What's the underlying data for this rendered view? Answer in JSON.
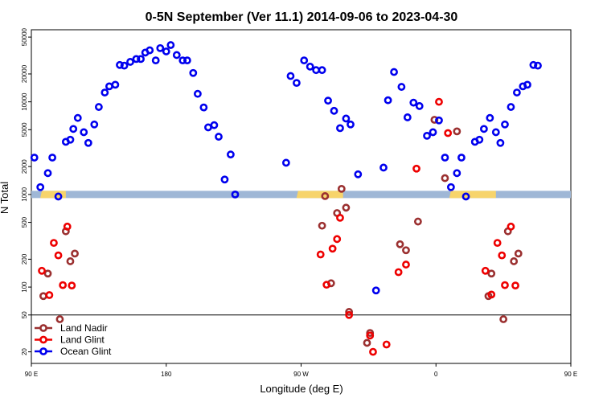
{
  "chart_data": {
    "type": "scatter",
    "title": "0-5N September (Ver 11.1)   2014-09-06 to 2023-04-30",
    "xlabel": "Longitude (deg E)",
    "ylabel": "N Total",
    "y_scale": "log",
    "xlim": [
      90,
      450
    ],
    "ylim": [
      15,
      60000
    ],
    "x_ticks": [
      {
        "value": 90,
        "label": "90 E"
      },
      {
        "value": 180,
        "label": "180"
      },
      {
        "value": 270,
        "label": "90 W"
      },
      {
        "value": 360,
        "label": "0"
      },
      {
        "value": 450,
        "label": "90 E"
      },
      {
        "value": 540,
        "label": "180"
      }
    ],
    "y_ticks": [
      {
        "value": 20,
        "label": "20"
      },
      {
        "value": 50,
        "label": "50"
      },
      {
        "value": 100,
        "label": "100"
      },
      {
        "value": 200,
        "label": "200"
      },
      {
        "value": 500,
        "label": "500"
      },
      {
        "value": 1000,
        "label": "1000"
      },
      {
        "value": 2000,
        "label": "2000"
      },
      {
        "value": 5000,
        "label": "5000"
      },
      {
        "value": 10000,
        "label": "10000"
      },
      {
        "value": 20000,
        "label": "20000"
      },
      {
        "value": 50000,
        "label": "50000"
      }
    ],
    "reference_lines": [
      50
    ],
    "land_band": {
      "y_center": 1000,
      "band_color": "#9fb7d6",
      "land_color": "#f7d46b",
      "land_segments": [
        [
          97,
          113
        ],
        [
          268,
          298
        ],
        [
          370,
          400
        ]
      ]
    },
    "legend": {
      "placement": "bottom-left"
    },
    "series": [
      {
        "name": "Land Nadir",
        "color": "#9b3030",
        "points": [
          [
            98,
            80
          ],
          [
            101,
            140
          ],
          [
            109,
            45
          ],
          [
            113,
            400
          ],
          [
            116,
            190
          ],
          [
            119,
            230
          ],
          [
            284,
            460
          ],
          [
            286,
            960
          ],
          [
            290,
            110
          ],
          [
            294,
            630
          ],
          [
            297,
            1150
          ],
          [
            300,
            720
          ],
          [
            302,
            54
          ],
          [
            314,
            25
          ],
          [
            316,
            32
          ],
          [
            336,
            290
          ],
          [
            340,
            250
          ],
          [
            348,
            510
          ],
          [
            359,
            6400
          ],
          [
            366,
            1500
          ],
          [
            374,
            4800
          ],
          [
            395,
            80
          ],
          [
            397,
            140
          ],
          [
            405,
            45
          ],
          [
            408,
            400
          ],
          [
            412,
            190
          ],
          [
            415,
            230
          ]
        ]
      },
      {
        "name": "Land Glint",
        "color": "#ee0000",
        "points": [
          [
            97,
            150
          ],
          [
            102,
            82
          ],
          [
            105,
            300
          ],
          [
            108,
            220
          ],
          [
            111,
            105
          ],
          [
            114,
            450
          ],
          [
            117,
            104
          ],
          [
            283,
            225
          ],
          [
            287,
            106
          ],
          [
            291,
            260
          ],
          [
            294,
            330
          ],
          [
            296,
            560
          ],
          [
            302,
            50
          ],
          [
            316,
            30
          ],
          [
            318,
            20
          ],
          [
            327,
            24
          ],
          [
            335,
            145
          ],
          [
            340,
            175
          ],
          [
            347,
            1900
          ],
          [
            362,
            10000
          ],
          [
            368,
            4600
          ],
          [
            393,
            150
          ],
          [
            397,
            83
          ],
          [
            401,
            300
          ],
          [
            404,
            220
          ],
          [
            406,
            105
          ],
          [
            410,
            450
          ],
          [
            413,
            104
          ]
        ]
      },
      {
        "name": "Ocean Glint",
        "color": "#0000ee",
        "points": [
          [
            92,
            2500
          ],
          [
            96,
            1200
          ],
          [
            101,
            1700
          ],
          [
            104,
            2500
          ],
          [
            108,
            950
          ],
          [
            113,
            3700
          ],
          [
            116,
            3900
          ],
          [
            118,
            5100
          ],
          [
            121,
            6700
          ],
          [
            125,
            4700
          ],
          [
            128,
            3600
          ],
          [
            132,
            5700
          ],
          [
            135,
            8800
          ],
          [
            139,
            12600
          ],
          [
            142,
            14700
          ],
          [
            146,
            15300
          ],
          [
            149,
            25000
          ],
          [
            152,
            24600
          ],
          [
            156,
            27000
          ],
          [
            160,
            29000
          ],
          [
            163,
            29000
          ],
          [
            166,
            34000
          ],
          [
            169,
            36000
          ],
          [
            173,
            28000
          ],
          [
            176,
            38000
          ],
          [
            180,
            35000
          ],
          [
            183,
            41000
          ],
          [
            187,
            32000
          ],
          [
            191,
            28000
          ],
          [
            194,
            28000
          ],
          [
            198,
            20500
          ],
          [
            201,
            12200
          ],
          [
            205,
            8700
          ],
          [
            208,
            5300
          ],
          [
            212,
            5600
          ],
          [
            215,
            4200
          ],
          [
            219,
            1450
          ],
          [
            223,
            2700
          ],
          [
            226,
            1000
          ],
          [
            260,
            2200
          ],
          [
            263,
            19000
          ],
          [
            267,
            16000
          ],
          [
            272,
            28000
          ],
          [
            276,
            24000
          ],
          [
            280,
            22000
          ],
          [
            284,
            22000
          ],
          [
            288,
            10300
          ],
          [
            292,
            8000
          ],
          [
            296,
            5200
          ],
          [
            300,
            6600
          ],
          [
            303,
            5700
          ],
          [
            308,
            1650
          ],
          [
            320,
            92
          ],
          [
            325,
            1950
          ],
          [
            328,
            10400
          ],
          [
            332,
            21000
          ],
          [
            337,
            14500
          ],
          [
            341,
            6800
          ],
          [
            345,
            9800
          ],
          [
            349,
            9000
          ],
          [
            354,
            4300
          ],
          [
            358,
            4700
          ],
          [
            362,
            6300
          ],
          [
            366,
            2500
          ],
          [
            370,
            1200
          ],
          [
            374,
            1700
          ],
          [
            377,
            2500
          ],
          [
            380,
            950
          ],
          [
            386,
            3700
          ],
          [
            389,
            3900
          ],
          [
            392,
            5100
          ],
          [
            396,
            6700
          ],
          [
            400,
            4700
          ],
          [
            403,
            3600
          ],
          [
            406,
            5700
          ],
          [
            410,
            8800
          ],
          [
            414,
            12600
          ],
          [
            418,
            14700
          ],
          [
            421,
            15300
          ],
          [
            425,
            25000
          ],
          [
            428,
            24600
          ]
        ]
      }
    ]
  }
}
